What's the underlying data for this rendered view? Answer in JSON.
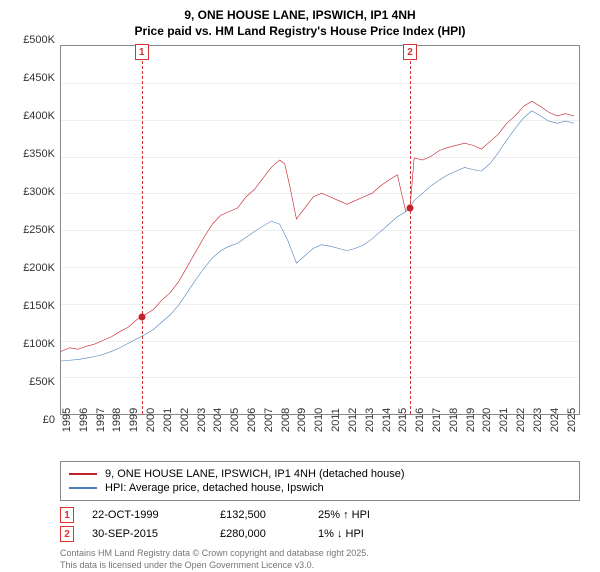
{
  "title": {
    "line1": "9, ONE HOUSE LANE, IPSWICH, IP1 4NH",
    "line2": "Price paid vs. HM Land Registry's House Price Index (HPI)"
  },
  "chart": {
    "type": "line",
    "background_color": "#ffffff",
    "grid_color": "#eeeeee",
    "border_color": "#888888",
    "ylim": [
      0,
      500000
    ],
    "ytick_step": 50000,
    "yticks": [
      "£0",
      "£50K",
      "£100K",
      "£150K",
      "£200K",
      "£250K",
      "£300K",
      "£350K",
      "£400K",
      "£450K",
      "£500K"
    ],
    "xlim": [
      1995,
      2025.8
    ],
    "xticks": [
      "1995",
      "1996",
      "1997",
      "1998",
      "1999",
      "2000",
      "2001",
      "2002",
      "2003",
      "2004",
      "2005",
      "2006",
      "2007",
      "2008",
      "2009",
      "2010",
      "2011",
      "2012",
      "2013",
      "2014",
      "2015",
      "2016",
      "2017",
      "2018",
      "2019",
      "2020",
      "2021",
      "2022",
      "2023",
      "2024",
      "2025"
    ],
    "series": [
      {
        "name": "9, ONE HOUSE LANE, IPSWICH, IP1 4NH (detached house)",
        "color": "#c5232b",
        "line_width": 2.2,
        "data": [
          [
            1995,
            85000
          ],
          [
            1995.5,
            90000
          ],
          [
            1996,
            88000
          ],
          [
            1996.5,
            92000
          ],
          [
            1997,
            95000
          ],
          [
            1997.5,
            100000
          ],
          [
            1998,
            105000
          ],
          [
            1998.5,
            112000
          ],
          [
            1999,
            118000
          ],
          [
            1999.5,
            128000
          ],
          [
            1999.8,
            132500
          ],
          [
            2000,
            135000
          ],
          [
            2000.5,
            142000
          ],
          [
            2001,
            155000
          ],
          [
            2001.5,
            165000
          ],
          [
            2002,
            180000
          ],
          [
            2002.5,
            200000
          ],
          [
            2003,
            220000
          ],
          [
            2003.5,
            240000
          ],
          [
            2004,
            258000
          ],
          [
            2004.5,
            270000
          ],
          [
            2005,
            275000
          ],
          [
            2005.5,
            280000
          ],
          [
            2006,
            295000
          ],
          [
            2006.5,
            305000
          ],
          [
            2007,
            320000
          ],
          [
            2007.5,
            335000
          ],
          [
            2008,
            345000
          ],
          [
            2008.3,
            340000
          ],
          [
            2008.6,
            310000
          ],
          [
            2009,
            265000
          ],
          [
            2009.5,
            280000
          ],
          [
            2010,
            295000
          ],
          [
            2010.5,
            300000
          ],
          [
            2011,
            295000
          ],
          [
            2011.5,
            290000
          ],
          [
            2012,
            285000
          ],
          [
            2012.5,
            290000
          ],
          [
            2013,
            295000
          ],
          [
            2013.5,
            300000
          ],
          [
            2014,
            310000
          ],
          [
            2014.5,
            318000
          ],
          [
            2015,
            325000
          ],
          [
            2015.5,
            275000
          ],
          [
            2015.75,
            280000
          ],
          [
            2016,
            348000
          ],
          [
            2016.5,
            345000
          ],
          [
            2017,
            350000
          ],
          [
            2017.5,
            358000
          ],
          [
            2018,
            362000
          ],
          [
            2018.5,
            365000
          ],
          [
            2019,
            368000
          ],
          [
            2019.5,
            365000
          ],
          [
            2020,
            360000
          ],
          [
            2020.5,
            370000
          ],
          [
            2021,
            380000
          ],
          [
            2021.5,
            395000
          ],
          [
            2022,
            405000
          ],
          [
            2022.5,
            418000
          ],
          [
            2023,
            425000
          ],
          [
            2023.5,
            418000
          ],
          [
            2024,
            410000
          ],
          [
            2024.5,
            405000
          ],
          [
            2025,
            408000
          ],
          [
            2025.5,
            405000
          ]
        ]
      },
      {
        "name": "HPI: Average price, detached house, Ipswich",
        "color": "#4a7ebb",
        "line_width": 2.0,
        "data": [
          [
            1995,
            72000
          ],
          [
            1995.5,
            73000
          ],
          [
            1996,
            74000
          ],
          [
            1996.5,
            76000
          ],
          [
            1997,
            78000
          ],
          [
            1997.5,
            81000
          ],
          [
            1998,
            85000
          ],
          [
            1998.5,
            90000
          ],
          [
            1999,
            96000
          ],
          [
            1999.5,
            102000
          ],
          [
            2000,
            108000
          ],
          [
            2000.5,
            115000
          ],
          [
            2001,
            125000
          ],
          [
            2001.5,
            135000
          ],
          [
            2002,
            148000
          ],
          [
            2002.5,
            165000
          ],
          [
            2003,
            182000
          ],
          [
            2003.5,
            198000
          ],
          [
            2004,
            212000
          ],
          [
            2004.5,
            222000
          ],
          [
            2005,
            228000
          ],
          [
            2005.5,
            232000
          ],
          [
            2006,
            240000
          ],
          [
            2006.5,
            248000
          ],
          [
            2007,
            255000
          ],
          [
            2007.5,
            262000
          ],
          [
            2008,
            258000
          ],
          [
            2008.5,
            235000
          ],
          [
            2009,
            205000
          ],
          [
            2009.5,
            215000
          ],
          [
            2010,
            225000
          ],
          [
            2010.5,
            230000
          ],
          [
            2011,
            228000
          ],
          [
            2011.5,
            225000
          ],
          [
            2012,
            222000
          ],
          [
            2012.5,
            225000
          ],
          [
            2013,
            230000
          ],
          [
            2013.5,
            238000
          ],
          [
            2014,
            248000
          ],
          [
            2014.5,
            258000
          ],
          [
            2015,
            268000
          ],
          [
            2015.5,
            275000
          ],
          [
            2015.75,
            280000
          ],
          [
            2016,
            290000
          ],
          [
            2016.5,
            300000
          ],
          [
            2017,
            310000
          ],
          [
            2017.5,
            318000
          ],
          [
            2018,
            325000
          ],
          [
            2018.5,
            330000
          ],
          [
            2019,
            335000
          ],
          [
            2019.5,
            332000
          ],
          [
            2020,
            330000
          ],
          [
            2020.5,
            340000
          ],
          [
            2021,
            355000
          ],
          [
            2021.5,
            372000
          ],
          [
            2022,
            388000
          ],
          [
            2022.5,
            402000
          ],
          [
            2023,
            412000
          ],
          [
            2023.5,
            405000
          ],
          [
            2024,
            398000
          ],
          [
            2024.5,
            395000
          ],
          [
            2025,
            398000
          ],
          [
            2025.5,
            395000
          ]
        ]
      }
    ],
    "markers": [
      {
        "badge": "1",
        "x": 1999.8,
        "badge_color": "#d33333"
      },
      {
        "badge": "2",
        "x": 2015.75,
        "badge_color": "#d33333"
      }
    ],
    "sale_points": [
      {
        "x": 1999.8,
        "y": 132500
      },
      {
        "x": 2015.75,
        "y": 280000
      }
    ]
  },
  "legend": {
    "items": [
      {
        "color": "#c5232b",
        "label": "9, ONE HOUSE LANE, IPSWICH, IP1 4NH (detached house)"
      },
      {
        "color": "#4a7ebb",
        "label": "HPI: Average price, detached house, Ipswich"
      }
    ]
  },
  "events": [
    {
      "badge": "1",
      "date": "22-OCT-1999",
      "price": "£132,500",
      "delta": "25% ↑ HPI"
    },
    {
      "badge": "2",
      "date": "30-SEP-2015",
      "price": "£280,000",
      "delta": "1% ↓ HPI"
    }
  ],
  "attribution": {
    "line1": "Contains HM Land Registry data © Crown copyright and database right 2025.",
    "line2": "This data is licensed under the Open Government Licence v3.0."
  }
}
